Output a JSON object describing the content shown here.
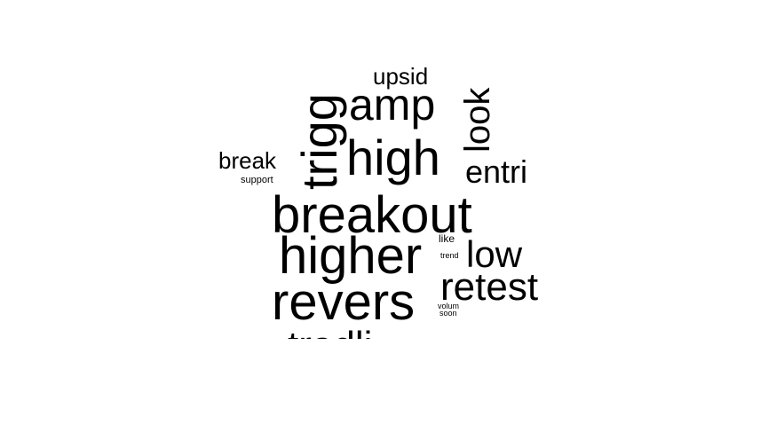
{
  "word_cloud": {
    "words": {
      "breakout": "breakout",
      "higher": "higher",
      "revers": "revers",
      "high": "high",
      "amp": "amp",
      "trigger": "trigg",
      "retest": "retest",
      "low": "low",
      "look": "look",
      "entri": "entri",
      "upsid": "upsid",
      "break": "break",
      "support": "support",
      "like": "like",
      "trend": "trend",
      "volum": "volum",
      "soon": "soon",
      "cut_bottom": "tradli"
    },
    "colors": {
      "text": "#000000",
      "background": "#ffffff"
    }
  }
}
